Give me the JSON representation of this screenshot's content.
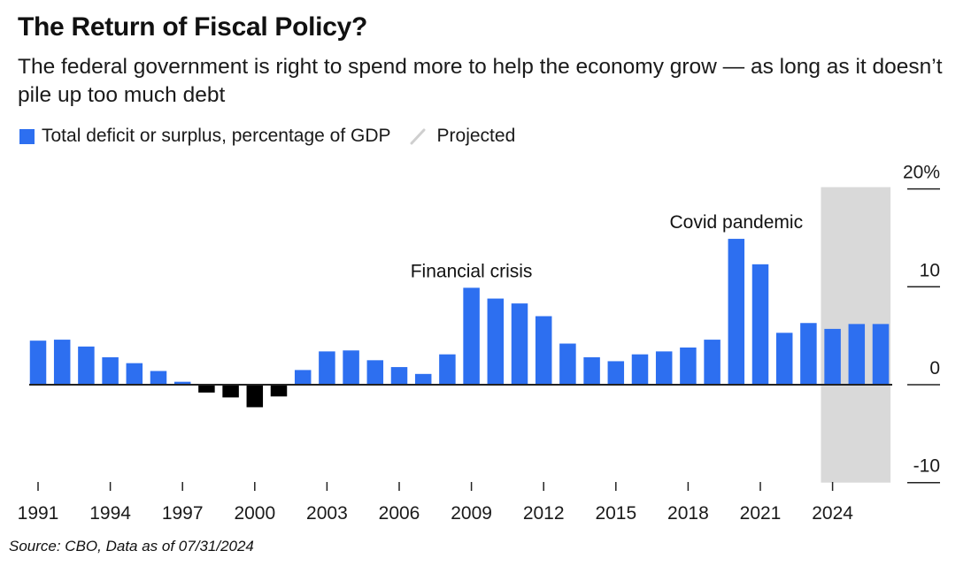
{
  "header": {
    "title": "The Return of Fiscal Policy?",
    "subtitle": "The federal government is right to spend more to help the economy grow — as long as it doesn’t pile up too much debt"
  },
  "legend": {
    "series_label": "Total deficit or surplus, percentage of GDP",
    "projected_label": "Projected",
    "series_icon": "square-swatch-icon",
    "projected_icon": "diagonal-slash-icon"
  },
  "source": "Source: CBO, Data as of 07/31/2024",
  "colors": {
    "deficit": "#2d6ff0",
    "surplus": "#000000",
    "projected_band": "#d9d9d9",
    "axis": "#222222"
  },
  "chart_data": {
    "type": "bar",
    "title": "The Return of Fiscal Policy?",
    "xlabel": "",
    "ylabel": "Total deficit or surplus, percentage of GDP",
    "categories": [
      1991,
      1992,
      1993,
      1994,
      1995,
      1996,
      1997,
      1998,
      1999,
      2000,
      2001,
      2002,
      2003,
      2004,
      2005,
      2006,
      2007,
      2008,
      2009,
      2010,
      2011,
      2012,
      2013,
      2014,
      2015,
      2016,
      2017,
      2018,
      2019,
      2020,
      2021,
      2022,
      2023,
      2024,
      2025,
      2026
    ],
    "series": [
      {
        "name": "Total deficit or surplus, percentage of GDP",
        "note": "positive = deficit (blue), negative = surplus (black)",
        "values": [
          4.5,
          4.6,
          3.9,
          2.8,
          2.2,
          1.4,
          0.3,
          -0.8,
          -1.3,
          -2.3,
          -1.2,
          1.5,
          3.4,
          3.5,
          2.5,
          1.8,
          1.1,
          3.1,
          9.9,
          8.8,
          8.3,
          7.0,
          4.2,
          2.8,
          2.4,
          3.1,
          3.4,
          3.8,
          4.6,
          14.9,
          12.3,
          5.3,
          6.3,
          5.7,
          6.2,
          6.2
        ]
      }
    ],
    "projected_range": [
      2024,
      2026
    ],
    "ylim": [
      -10,
      20
    ],
    "yticks": [
      -10,
      0,
      10,
      20
    ],
    "ytick_labels": [
      "-10",
      "0",
      "10",
      "20%"
    ],
    "xticks": [
      1991,
      1994,
      1997,
      2000,
      2003,
      2006,
      2009,
      2012,
      2015,
      2018,
      2021,
      2024
    ],
    "xtick_labels": [
      "1991",
      "1994",
      "1997",
      "2000",
      "2003",
      "2006",
      "2009",
      "2012",
      "2015",
      "2018",
      "2021",
      "2024"
    ],
    "y_axis_position": "right",
    "grid": false,
    "legend_position": "top-left",
    "annotations": [
      {
        "text": "Financial crisis",
        "x": 2009
      },
      {
        "text": "Covid pandemic",
        "x": 2020
      }
    ]
  }
}
